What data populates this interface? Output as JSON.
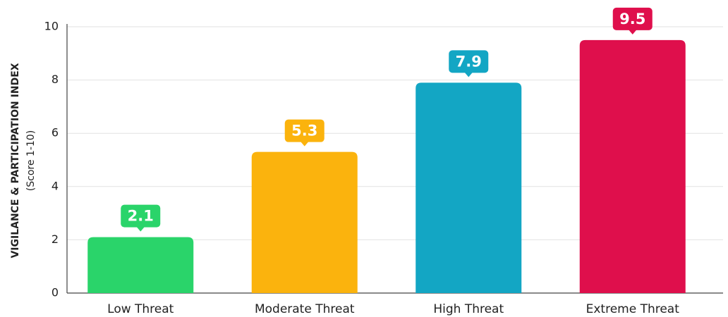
{
  "chart_data": {
    "type": "bar",
    "y_label": "VIGILANCE & PARTICIPATION INDEX",
    "y_sublabel": "(Score 1-10)",
    "categories": [
      "Low Threat",
      "Moderate Threat",
      "High Threat",
      "Extreme Threat"
    ],
    "values": [
      2.1,
      5.3,
      7.9,
      9.5
    ],
    "colors": [
      "#2ad46a",
      "#fbb30d",
      "#13a6c4",
      "#df0f4c"
    ],
    "ylim": [
      0,
      10
    ],
    "yticks": [
      0,
      2,
      4,
      6,
      8,
      10
    ],
    "grid": true
  }
}
